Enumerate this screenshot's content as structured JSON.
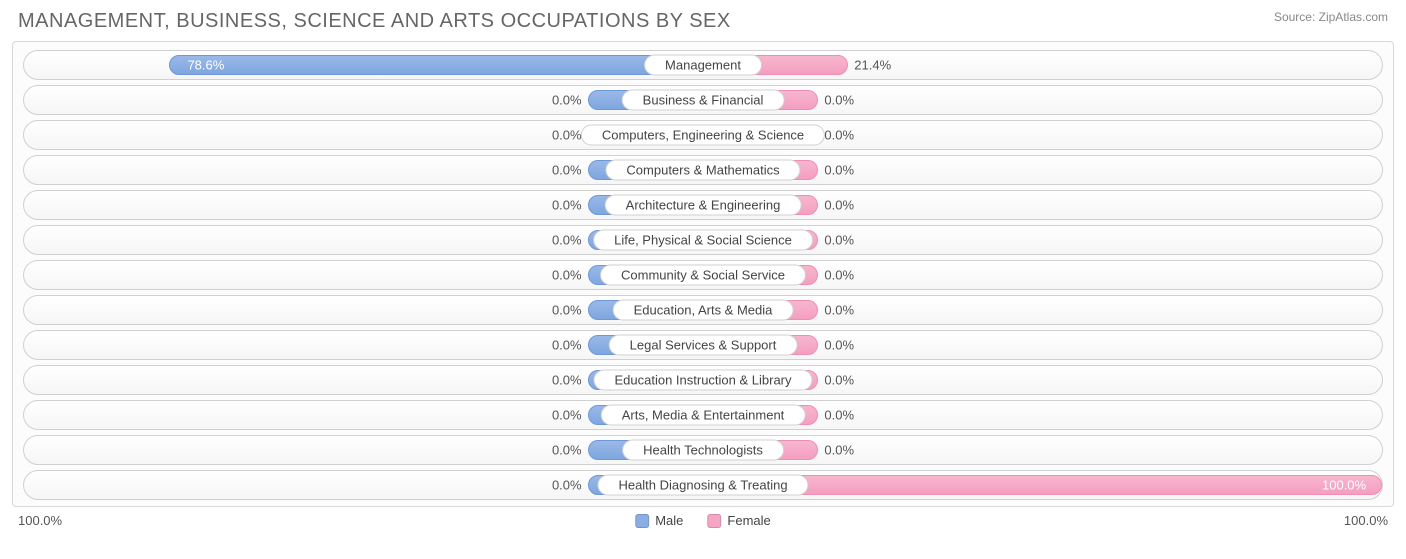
{
  "title": "MANAGEMENT, BUSINESS, SCIENCE AND ARTS OCCUPATIONS BY SEX",
  "source_label": "Source:",
  "source_value": "ZipAtlas.com",
  "axis": {
    "left": "100.0%",
    "right": "100.0%"
  },
  "legend": {
    "male": {
      "label": "Male",
      "color": "#8aaee4"
    },
    "female": {
      "label": "Female",
      "color": "#f4a6c4"
    }
  },
  "colors": {
    "male_bar": "#8aaee4",
    "female_bar": "#f4a6c4",
    "row_border": "#d0d0d0",
    "text": "#555555",
    "title": "#666666"
  },
  "default_bar_pct": 17,
  "rows": [
    {
      "category": "Management",
      "male_pct": 78.6,
      "male_label": "78.6%",
      "female_pct": 21.4,
      "female_label": "21.4%"
    },
    {
      "category": "Business & Financial",
      "male_pct": 0.0,
      "male_label": "0.0%",
      "female_pct": 0.0,
      "female_label": "0.0%"
    },
    {
      "category": "Computers, Engineering & Science",
      "male_pct": 0.0,
      "male_label": "0.0%",
      "female_pct": 0.0,
      "female_label": "0.0%"
    },
    {
      "category": "Computers & Mathematics",
      "male_pct": 0.0,
      "male_label": "0.0%",
      "female_pct": 0.0,
      "female_label": "0.0%"
    },
    {
      "category": "Architecture & Engineering",
      "male_pct": 0.0,
      "male_label": "0.0%",
      "female_pct": 0.0,
      "female_label": "0.0%"
    },
    {
      "category": "Life, Physical & Social Science",
      "male_pct": 0.0,
      "male_label": "0.0%",
      "female_pct": 0.0,
      "female_label": "0.0%"
    },
    {
      "category": "Community & Social Service",
      "male_pct": 0.0,
      "male_label": "0.0%",
      "female_pct": 0.0,
      "female_label": "0.0%"
    },
    {
      "category": "Education, Arts & Media",
      "male_pct": 0.0,
      "male_label": "0.0%",
      "female_pct": 0.0,
      "female_label": "0.0%"
    },
    {
      "category": "Legal Services & Support",
      "male_pct": 0.0,
      "male_label": "0.0%",
      "female_pct": 0.0,
      "female_label": "0.0%"
    },
    {
      "category": "Education Instruction & Library",
      "male_pct": 0.0,
      "male_label": "0.0%",
      "female_pct": 0.0,
      "female_label": "0.0%"
    },
    {
      "category": "Arts, Media & Entertainment",
      "male_pct": 0.0,
      "male_label": "0.0%",
      "female_pct": 0.0,
      "female_label": "0.0%"
    },
    {
      "category": "Health Technologists",
      "male_pct": 0.0,
      "male_label": "0.0%",
      "female_pct": 0.0,
      "female_label": "0.0%"
    },
    {
      "category": "Health Diagnosing & Treating",
      "male_pct": 0.0,
      "male_label": "0.0%",
      "female_pct": 100.0,
      "female_label": "100.0%"
    }
  ]
}
